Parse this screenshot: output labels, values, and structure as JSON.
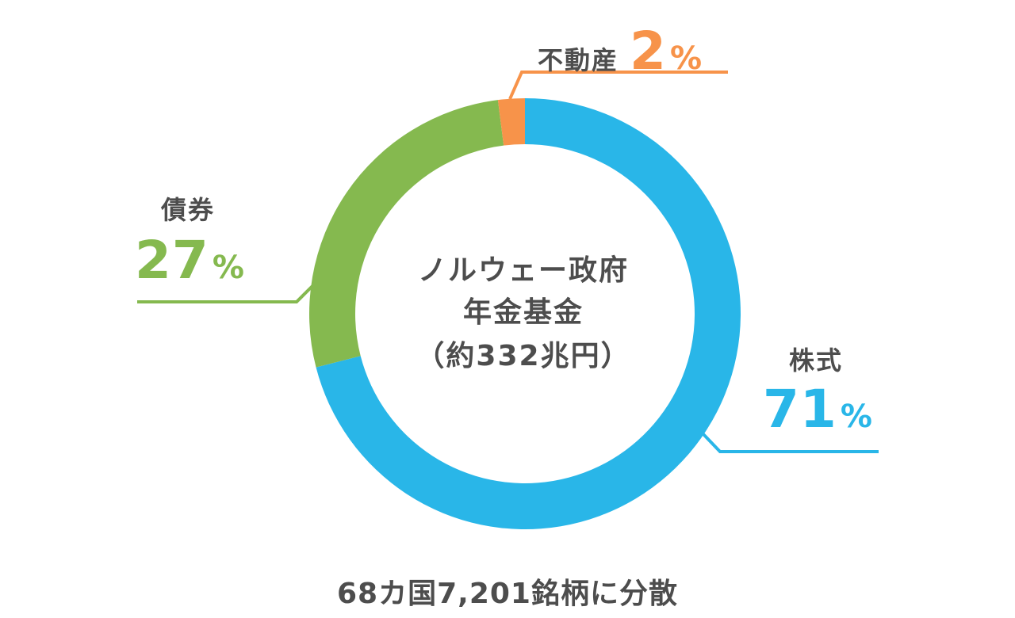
{
  "chart_data": {
    "type": "pie",
    "categories": [
      "株式",
      "債券",
      "不動産"
    ],
    "values": [
      71,
      27,
      2
    ],
    "unit": "%",
    "colors": [
      "#29b6e8",
      "#85b94f",
      "#f7934a"
    ],
    "center_label": [
      "ノルウェー政府",
      "年金基金",
      "（約332兆円）"
    ],
    "caption": "68カ国7,201銘柄に分散"
  },
  "labels": {
    "stocks": {
      "name": "株式",
      "value": "71",
      "unit": "%"
    },
    "bonds": {
      "name": "債券",
      "value": "27",
      "unit": "%"
    },
    "realestate": {
      "name": "不動産",
      "value": "2",
      "unit": "%"
    }
  }
}
